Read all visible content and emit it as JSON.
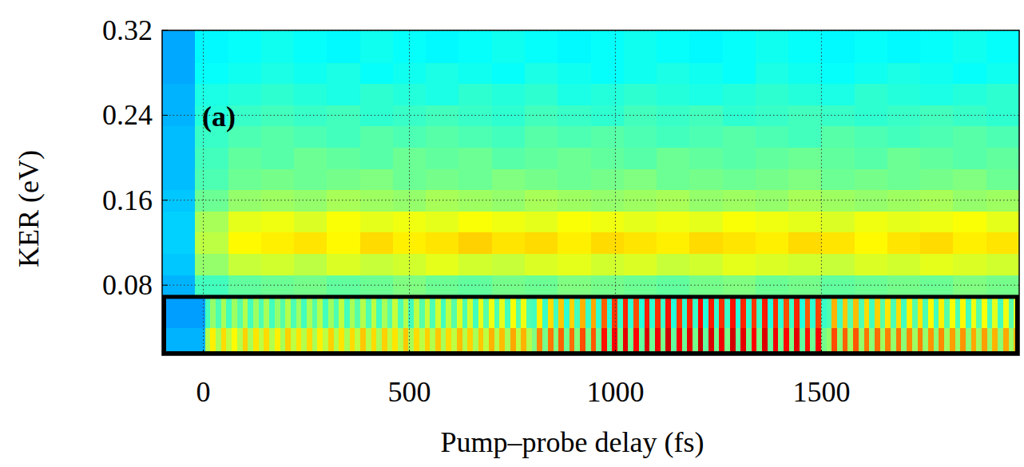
{
  "chart_data": {
    "type": "heatmap",
    "xlabel": "Pump–probe delay (fs)",
    "ylabel": "KER (eV)",
    "annotation": "(a)",
    "xlim": [
      -100,
      1980
    ],
    "ylim": [
      0.014,
      0.32
    ],
    "xticks": [
      0,
      500,
      1000,
      1500
    ],
    "yticks": [
      0.08,
      0.16,
      0.24,
      0.32
    ],
    "grid": true,
    "clim": [
      0,
      1
    ],
    "box": {
      "xlim": [
        -100,
        1980
      ],
      "ylim": [
        0.014,
        0.069
      ]
    },
    "heatmap": [
      {
        "x_edges": [
          -100,
          -20,
          60,
          140,
          220,
          300,
          380,
          460,
          540,
          620,
          700,
          780,
          860,
          940,
          1020,
          1100,
          1180,
          1260,
          1340,
          1420,
          1500,
          1580,
          1660,
          1740,
          1820,
          1900,
          1980
        ],
        "y_edges": [
          0.069,
          0.09,
          0.11,
          0.13,
          0.15,
          0.17,
          0.19,
          0.21,
          0.23,
          0.25,
          0.27,
          0.29,
          0.32
        ],
        "cells": [
          [
            0.3,
            0.44,
            0.47,
            0.48,
            0.49,
            0.47,
            0.48,
            0.5,
            0.48,
            0.47,
            0.49,
            0.48,
            0.5,
            0.49,
            0.48,
            0.47,
            0.49,
            0.5,
            0.48,
            0.49,
            0.47,
            0.48,
            0.49,
            0.48,
            0.5,
            0.49
          ],
          [
            0.32,
            0.52,
            0.57,
            0.58,
            0.56,
            0.59,
            0.57,
            0.58,
            0.6,
            0.58,
            0.57,
            0.59,
            0.6,
            0.58,
            0.59,
            0.57,
            0.58,
            0.6,
            0.59,
            0.58,
            0.57,
            0.59,
            0.58,
            0.6,
            0.59,
            0.58
          ],
          [
            0.33,
            0.56,
            0.63,
            0.64,
            0.65,
            0.63,
            0.66,
            0.64,
            0.65,
            0.67,
            0.65,
            0.66,
            0.64,
            0.66,
            0.65,
            0.64,
            0.66,
            0.65,
            0.64,
            0.66,
            0.65,
            0.63,
            0.65,
            0.66,
            0.64,
            0.65
          ],
          [
            0.33,
            0.54,
            0.6,
            0.61,
            0.59,
            0.62,
            0.6,
            0.61,
            0.6,
            0.62,
            0.61,
            0.6,
            0.62,
            0.61,
            0.6,
            0.61,
            0.6,
            0.62,
            0.61,
            0.6,
            0.59,
            0.61,
            0.6,
            0.61,
            0.62,
            0.6
          ],
          [
            0.32,
            0.48,
            0.52,
            0.53,
            0.52,
            0.54,
            0.53,
            0.52,
            0.54,
            0.53,
            0.52,
            0.54,
            0.53,
            0.52,
            0.53,
            0.54,
            0.52,
            0.53,
            0.52,
            0.54,
            0.53,
            0.52,
            0.53,
            0.54,
            0.52,
            0.53
          ],
          [
            0.31,
            0.45,
            0.48,
            0.49,
            0.48,
            0.49,
            0.5,
            0.48,
            0.49,
            0.48,
            0.5,
            0.49,
            0.48,
            0.49,
            0.5,
            0.48,
            0.49,
            0.48,
            0.49,
            0.5,
            0.48,
            0.49,
            0.48,
            0.49,
            0.5,
            0.48
          ],
          [
            0.31,
            0.44,
            0.47,
            0.46,
            0.48,
            0.47,
            0.46,
            0.48,
            0.47,
            0.48,
            0.46,
            0.47,
            0.48,
            0.47,
            0.46,
            0.48,
            0.47,
            0.46,
            0.47,
            0.48,
            0.47,
            0.46,
            0.48,
            0.47,
            0.46,
            0.47
          ],
          [
            0.31,
            0.43,
            0.45,
            0.46,
            0.45,
            0.44,
            0.46,
            0.45,
            0.46,
            0.45,
            0.44,
            0.46,
            0.45,
            0.46,
            0.45,
            0.44,
            0.45,
            0.46,
            0.45,
            0.44,
            0.46,
            0.45,
            0.44,
            0.45,
            0.46,
            0.45
          ],
          [
            0.3,
            0.41,
            0.43,
            0.44,
            0.43,
            0.44,
            0.42,
            0.43,
            0.44,
            0.43,
            0.42,
            0.44,
            0.43,
            0.42,
            0.44,
            0.43,
            0.44,
            0.42,
            0.43,
            0.44,
            0.43,
            0.42,
            0.43,
            0.44,
            0.43,
            0.42
          ],
          [
            0.3,
            0.4,
            0.41,
            0.42,
            0.41,
            0.4,
            0.42,
            0.41,
            0.4,
            0.42,
            0.41,
            0.42,
            0.4,
            0.41,
            0.42,
            0.41,
            0.4,
            0.41,
            0.42,
            0.41,
            0.4,
            0.42,
            0.41,
            0.4,
            0.41,
            0.42
          ],
          [
            0.29,
            0.38,
            0.39,
            0.4,
            0.39,
            0.4,
            0.38,
            0.39,
            0.4,
            0.39,
            0.38,
            0.4,
            0.39,
            0.38,
            0.39,
            0.4,
            0.39,
            0.38,
            0.4,
            0.39,
            0.38,
            0.39,
            0.4,
            0.39,
            0.38,
            0.39
          ],
          [
            0.29,
            0.37,
            0.38,
            0.39,
            0.38,
            0.37,
            0.39,
            0.38,
            0.37,
            0.38,
            0.39,
            0.38,
            0.37,
            0.38,
            0.39,
            0.38,
            0.37,
            0.38,
            0.39,
            0.38,
            0.37,
            0.38,
            0.37,
            0.38,
            0.39,
            0.38
          ]
        ]
      },
      {
        "x_edges": [
          -100,
          -87,
          -74,
          -61,
          -48,
          -35,
          -22,
          -9,
          4,
          17,
          30,
          43,
          56,
          69,
          82,
          95,
          108,
          121,
          134,
          147,
          160,
          173,
          186,
          199,
          212,
          225,
          238,
          251,
          264,
          277,
          290,
          303,
          316,
          329,
          342,
          355,
          368,
          381,
          394,
          407,
          420,
          433,
          446,
          459,
          472,
          485,
          498,
          511,
          524,
          537,
          550,
          563,
          576,
          589,
          602,
          615,
          628,
          641,
          654,
          667,
          680,
          693,
          706,
          719,
          732,
          745,
          758,
          771,
          784,
          797,
          810,
          823,
          836,
          849,
          862,
          875,
          888,
          901,
          914,
          927,
          940,
          953,
          966,
          979,
          992,
          1005,
          1018,
          1031,
          1044,
          1057,
          1070,
          1083,
          1096,
          1109,
          1122,
          1135,
          1148,
          1161,
          1174,
          1187,
          1200,
          1213,
          1226,
          1239,
          1252,
          1265,
          1278,
          1291,
          1304,
          1317,
          1330,
          1343,
          1356,
          1369,
          1382,
          1395,
          1408,
          1421,
          1434,
          1447,
          1460,
          1473,
          1486,
          1499,
          1512,
          1525,
          1538,
          1551,
          1564,
          1577,
          1590,
          1603,
          1616,
          1629,
          1642,
          1655,
          1668,
          1681,
          1694,
          1707,
          1720,
          1733,
          1746,
          1759,
          1772,
          1785,
          1798,
          1811,
          1824,
          1837,
          1850,
          1863,
          1876,
          1889,
          1902,
          1915,
          1928,
          1941,
          1954,
          1967,
          1980
        ],
        "y_edges": [
          0.014,
          0.04,
          0.069
        ],
        "cells": [
          [
            0.3,
            0.3,
            0.3,
            0.3,
            0.3,
            0.3,
            0.3,
            0.3,
            0.55,
            0.64,
            0.54,
            0.66,
            0.56,
            0.63,
            0.55,
            0.67,
            0.54,
            0.65,
            0.56,
            0.66,
            0.55,
            0.64,
            0.54,
            0.67,
            0.56,
            0.65,
            0.55,
            0.66,
            0.54,
            0.64,
            0.56,
            0.67,
            0.55,
            0.65,
            0.54,
            0.66,
            0.56,
            0.68,
            0.55,
            0.66,
            0.54,
            0.67,
            0.56,
            0.65,
            0.55,
            0.68,
            0.54,
            0.66,
            0.56,
            0.67,
            0.55,
            0.68,
            0.54,
            0.66,
            0.56,
            0.69,
            0.55,
            0.67,
            0.54,
            0.68,
            0.56,
            0.7,
            0.55,
            0.69,
            0.54,
            0.71,
            0.56,
            0.7,
            0.55,
            0.5,
            0.74,
            0.49,
            0.76,
            0.5,
            0.78,
            0.48,
            0.77,
            0.5,
            0.8,
            0.49,
            0.79,
            0.48,
            0.86,
            0.47,
            0.88,
            0.49,
            0.9,
            0.48,
            0.87,
            0.47,
            0.91,
            0.48,
            0.89,
            0.49,
            0.92,
            0.47,
            0.88,
            0.48,
            0.9,
            0.49,
            0.93,
            0.47,
            0.91,
            0.48,
            0.89,
            0.49,
            0.92,
            0.47,
            0.9,
            0.48,
            0.88,
            0.49,
            0.91,
            0.47,
            0.89,
            0.48,
            0.87,
            0.49,
            0.9,
            0.47,
            0.86,
            0.48,
            0.88,
            0.49,
            0.52,
            0.8,
            0.51,
            0.78,
            0.53,
            0.79,
            0.52,
            0.76,
            0.51,
            0.77,
            0.53,
            0.75,
            0.52,
            0.76,
            0.51,
            0.74,
            0.53,
            0.75,
            0.52,
            0.73,
            0.51,
            0.74,
            0.53,
            0.72,
            0.52,
            0.73,
            0.51,
            0.71,
            0.53,
            0.72,
            0.52,
            0.7,
            0.51,
            0.71,
            0.53,
            0.7
          ],
          [
            0.28,
            0.28,
            0.28,
            0.28,
            0.28,
            0.28,
            0.28,
            0.28,
            0.44,
            0.52,
            0.45,
            0.54,
            0.44,
            0.53,
            0.46,
            0.55,
            0.44,
            0.53,
            0.45,
            0.54,
            0.44,
            0.52,
            0.46,
            0.55,
            0.45,
            0.53,
            0.44,
            0.54,
            0.46,
            0.55,
            0.44,
            0.53,
            0.45,
            0.56,
            0.44,
            0.54,
            0.46,
            0.55,
            0.45,
            0.56,
            0.44,
            0.54,
            0.46,
            0.57,
            0.45,
            0.55,
            0.44,
            0.56,
            0.46,
            0.57,
            0.45,
            0.58,
            0.44,
            0.56,
            0.46,
            0.59,
            0.45,
            0.58,
            0.44,
            0.6,
            0.46,
            0.61,
            0.45,
            0.6,
            0.44,
            0.62,
            0.46,
            0.61,
            0.45,
            0.44,
            0.64,
            0.43,
            0.66,
            0.44,
            0.68,
            0.42,
            0.67,
            0.44,
            0.7,
            0.43,
            0.71,
            0.42,
            0.78,
            0.41,
            0.82,
            0.43,
            0.84,
            0.42,
            0.8,
            0.41,
            0.85,
            0.42,
            0.83,
            0.43,
            0.86,
            0.41,
            0.82,
            0.42,
            0.84,
            0.43,
            0.87,
            0.41,
            0.85,
            0.42,
            0.83,
            0.43,
            0.86,
            0.41,
            0.84,
            0.42,
            0.82,
            0.43,
            0.85,
            0.41,
            0.83,
            0.42,
            0.8,
            0.43,
            0.84,
            0.41,
            0.79,
            0.42,
            0.81,
            0.43,
            0.45,
            0.7,
            0.44,
            0.68,
            0.46,
            0.69,
            0.45,
            0.66,
            0.44,
            0.67,
            0.46,
            0.65,
            0.45,
            0.66,
            0.44,
            0.64,
            0.46,
            0.65,
            0.45,
            0.63,
            0.44,
            0.64,
            0.46,
            0.62,
            0.45,
            0.63,
            0.44,
            0.61,
            0.46,
            0.62,
            0.45,
            0.6,
            0.44,
            0.61,
            0.46,
            0.6
          ]
        ]
      }
    ]
  }
}
